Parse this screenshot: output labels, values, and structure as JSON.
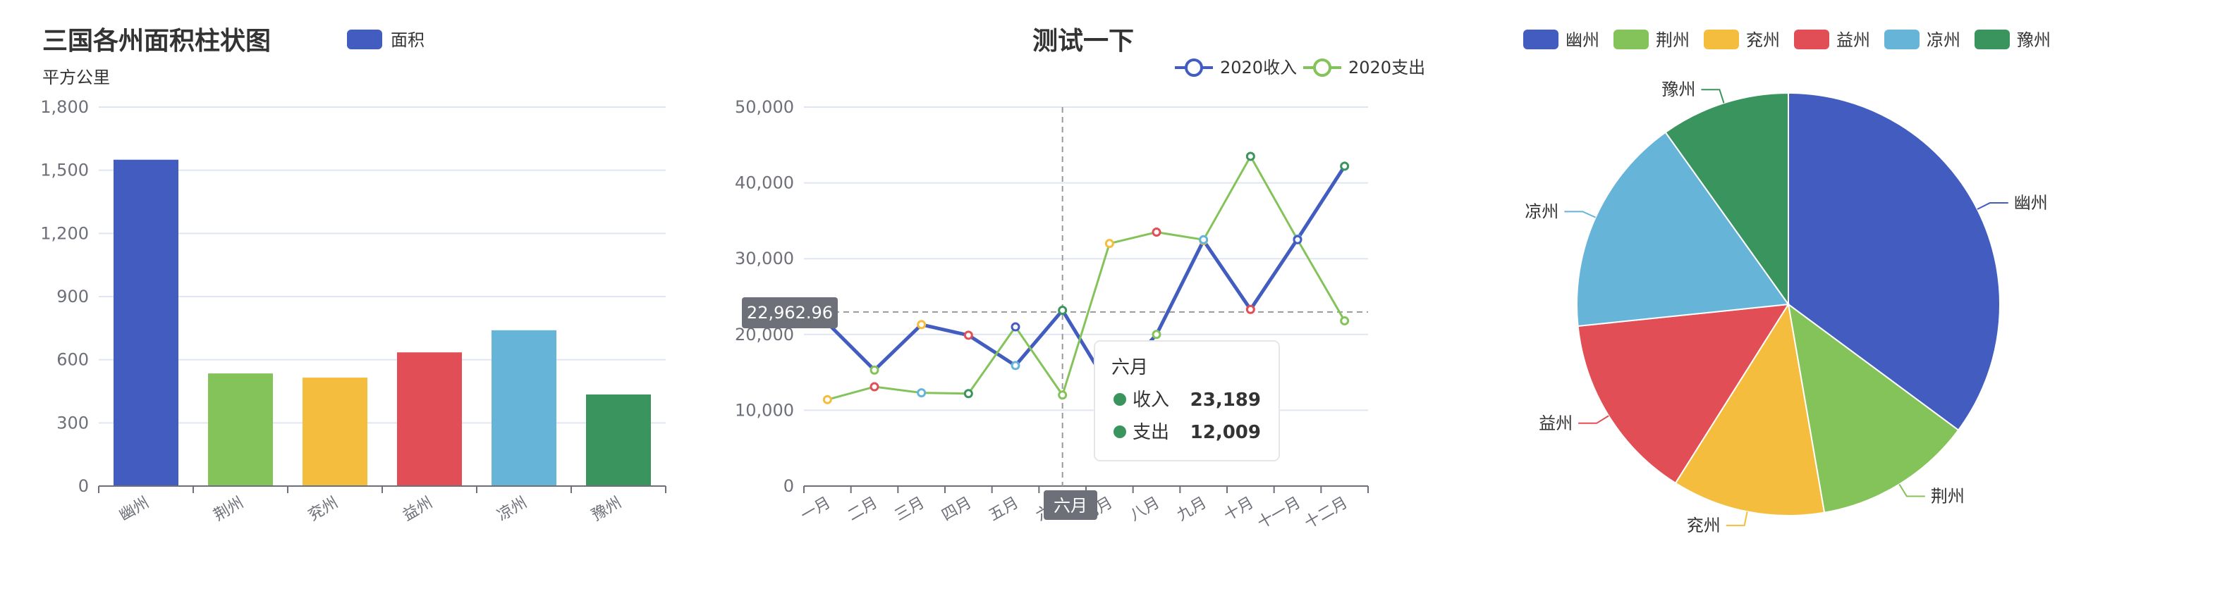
{
  "colors": {
    "palette": [
      "#425dbf",
      "#84c35a",
      "#f5bd3d",
      "#e24e55",
      "#67b4d9",
      "#3a945d"
    ],
    "series_income": "#425dbf",
    "series_expense": "#84c35a",
    "grid": "#e0e6f1",
    "axis": "#6e7079",
    "tooltip_dot": "#3a945d"
  },
  "bar_chart": {
    "title": "三国各州面积柱状图",
    "legend": "面积",
    "unit": "平方公里"
  },
  "line_chart": {
    "title": "测试一下",
    "legend": [
      "2020收入",
      "2020支出"
    ],
    "crosshair_value": "22,962.96",
    "crosshair_category": "六月",
    "tooltip": {
      "title": "六月",
      "rows": [
        {
          "label": "收入",
          "value": "23,189"
        },
        {
          "label": "支出",
          "value": "12,009"
        }
      ]
    }
  },
  "pie_chart": {
    "legend": [
      "幽州",
      "荆州",
      "兖州",
      "益州",
      "凉州",
      "豫州"
    ]
  },
  "chart_data": [
    {
      "type": "bar",
      "title": "三国各州面积柱状图",
      "ylabel": "平方公里",
      "categories": [
        "幽州",
        "荆州",
        "兖州",
        "益州",
        "凉州",
        "豫州"
      ],
      "series": [
        {
          "name": "面积",
          "values": [
            1550,
            535,
            515,
            635,
            740,
            435
          ]
        }
      ],
      "ylim": [
        0,
        1800
      ],
      "yticks": [
        "0",
        "300",
        "600",
        "900",
        "1,200",
        "1,500",
        "1,800"
      ],
      "grid": true,
      "legend": "top"
    },
    {
      "type": "line",
      "title": "测试一下",
      "categories": [
        "一月",
        "二月",
        "三月",
        "四月",
        "五月",
        "六月",
        "七月",
        "八月",
        "九月",
        "十月",
        "十一月",
        "十二月"
      ],
      "series": [
        {
          "name": "2020收入",
          "values": [
            21500,
            15300,
            21300,
            19900,
            15900,
            23189,
            13000,
            20000,
            32400,
            23300,
            32600,
            42200
          ]
        },
        {
          "name": "2020支出",
          "values": [
            11400,
            13100,
            12300,
            12200,
            21000,
            12009,
            32000,
            33500,
            32500,
            43500,
            32500,
            21800
          ]
        }
      ],
      "ylim": [
        0,
        50000
      ],
      "yticks": [
        "0",
        "10,000",
        "20,000",
        "30,000",
        "40,000",
        "50,000"
      ],
      "grid": true,
      "legend": "top-right"
    },
    {
      "type": "pie",
      "labels": [
        "幽州",
        "荆州",
        "兖州",
        "益州",
        "凉州",
        "豫州"
      ],
      "values": [
        1550,
        535,
        515,
        635,
        740,
        435
      ],
      "legend": "top"
    }
  ]
}
